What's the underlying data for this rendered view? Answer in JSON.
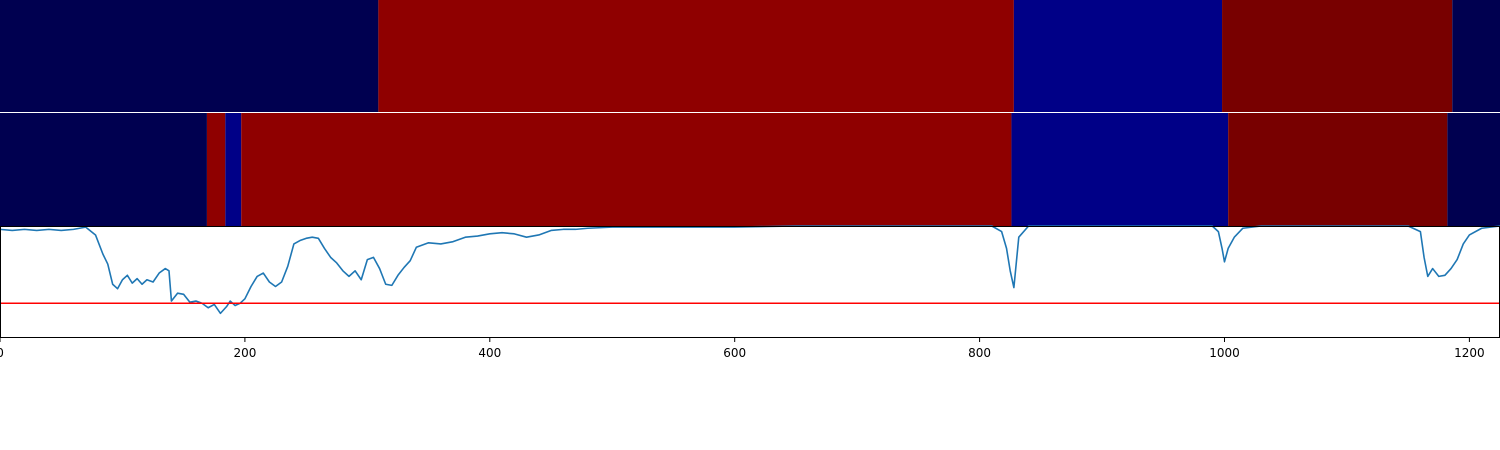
{
  "colors": {
    "navy": "#000050",
    "red": "#8f0000",
    "blue": "#000087",
    "maroon": "#780000",
    "line": "#1f77b4",
    "threshold": "#ff0000",
    "axes_edge": "#000000"
  },
  "chart_data": [
    {
      "type": "heatmap",
      "panel": "top-segmentation",
      "xlim": [
        0,
        1225
      ],
      "segments": [
        {
          "start": 0,
          "end": 309,
          "color": "navy"
        },
        {
          "start": 309,
          "end": 828,
          "color": "red"
        },
        {
          "start": 828,
          "end": 998,
          "color": "blue"
        },
        {
          "start": 998,
          "end": 1186,
          "color": "maroon"
        },
        {
          "start": 1186,
          "end": 1225,
          "color": "navy"
        }
      ]
    },
    {
      "type": "heatmap",
      "panel": "middle-segmentation",
      "xlim": [
        0,
        1225
      ],
      "segments": [
        {
          "start": 0,
          "end": 169,
          "color": "navy"
        },
        {
          "start": 169,
          "end": 184,
          "color": "red"
        },
        {
          "start": 184,
          "end": 197,
          "color": "blue"
        },
        {
          "start": 197,
          "end": 826,
          "color": "red"
        },
        {
          "start": 826,
          "end": 1003,
          "color": "blue"
        },
        {
          "start": 1003,
          "end": 1182,
          "color": "maroon"
        },
        {
          "start": 1182,
          "end": 1225,
          "color": "navy"
        }
      ]
    },
    {
      "type": "line",
      "panel": "signal",
      "xlim": [
        0,
        1225
      ],
      "ylim": [
        0,
        1
      ],
      "grid": false,
      "threshold": 0.31,
      "x_ticks": [
        0,
        200,
        400,
        600,
        800,
        1000,
        1200
      ],
      "x_tick_labels": [
        "0",
        "200",
        "400",
        "600",
        "800",
        "1000",
        "1200"
      ],
      "series": [
        {
          "x": [
            0,
            10,
            20,
            30,
            40,
            50,
            60,
            70,
            78,
            84,
            88,
            92,
            96,
            100,
            104,
            108,
            112,
            116,
            120,
            125,
            130,
            135,
            138,
            140,
            145,
            150,
            155,
            160,
            165,
            170,
            175,
            180,
            185,
            188,
            192,
            196,
            200,
            205,
            210,
            215,
            220,
            225,
            230,
            235,
            240,
            245,
            250,
            255,
            260,
            265,
            270,
            275,
            280,
            285,
            290,
            295,
            300,
            305,
            310,
            315,
            320,
            325,
            330,
            335,
            340,
            350,
            360,
            370,
            380,
            390,
            400,
            410,
            420,
            430,
            440,
            450,
            460,
            470,
            480,
            500,
            550,
            600,
            650,
            700,
            750,
            790,
            810,
            818,
            822,
            825,
            828,
            832,
            840,
            850,
            900,
            950,
            990,
            995,
            998,
            1000,
            1003,
            1008,
            1015,
            1030,
            1100,
            1150,
            1160,
            1163,
            1166,
            1170,
            1175,
            1180,
            1185,
            1190,
            1195,
            1200,
            1210,
            1225
          ],
          "y": [
            0.97,
            0.96,
            0.97,
            0.96,
            0.97,
            0.96,
            0.97,
            0.99,
            0.92,
            0.75,
            0.66,
            0.48,
            0.44,
            0.52,
            0.56,
            0.49,
            0.53,
            0.48,
            0.52,
            0.5,
            0.58,
            0.62,
            0.6,
            0.33,
            0.4,
            0.39,
            0.32,
            0.33,
            0.31,
            0.27,
            0.3,
            0.22,
            0.28,
            0.33,
            0.29,
            0.31,
            0.35,
            0.46,
            0.55,
            0.58,
            0.5,
            0.46,
            0.5,
            0.64,
            0.84,
            0.87,
            0.89,
            0.9,
            0.89,
            0.8,
            0.72,
            0.67,
            0.6,
            0.55,
            0.6,
            0.52,
            0.7,
            0.72,
            0.62,
            0.48,
            0.47,
            0.56,
            0.63,
            0.69,
            0.81,
            0.85,
            0.84,
            0.86,
            0.9,
            0.91,
            0.93,
            0.94,
            0.93,
            0.9,
            0.92,
            0.96,
            0.97,
            0.97,
            0.98,
            0.99,
            0.99,
            0.99,
            1.0,
            1.0,
            1.0,
            1.0,
            1.0,
            0.95,
            0.8,
            0.6,
            0.45,
            0.9,
            1.0,
            1.0,
            1.0,
            1.0,
            1.0,
            0.95,
            0.8,
            0.68,
            0.8,
            0.9,
            0.98,
            1.0,
            1.0,
            1.0,
            0.95,
            0.72,
            0.55,
            0.62,
            0.55,
            0.56,
            0.62,
            0.7,
            0.84,
            0.92,
            0.98,
            1.0
          ]
        }
      ]
    }
  ]
}
